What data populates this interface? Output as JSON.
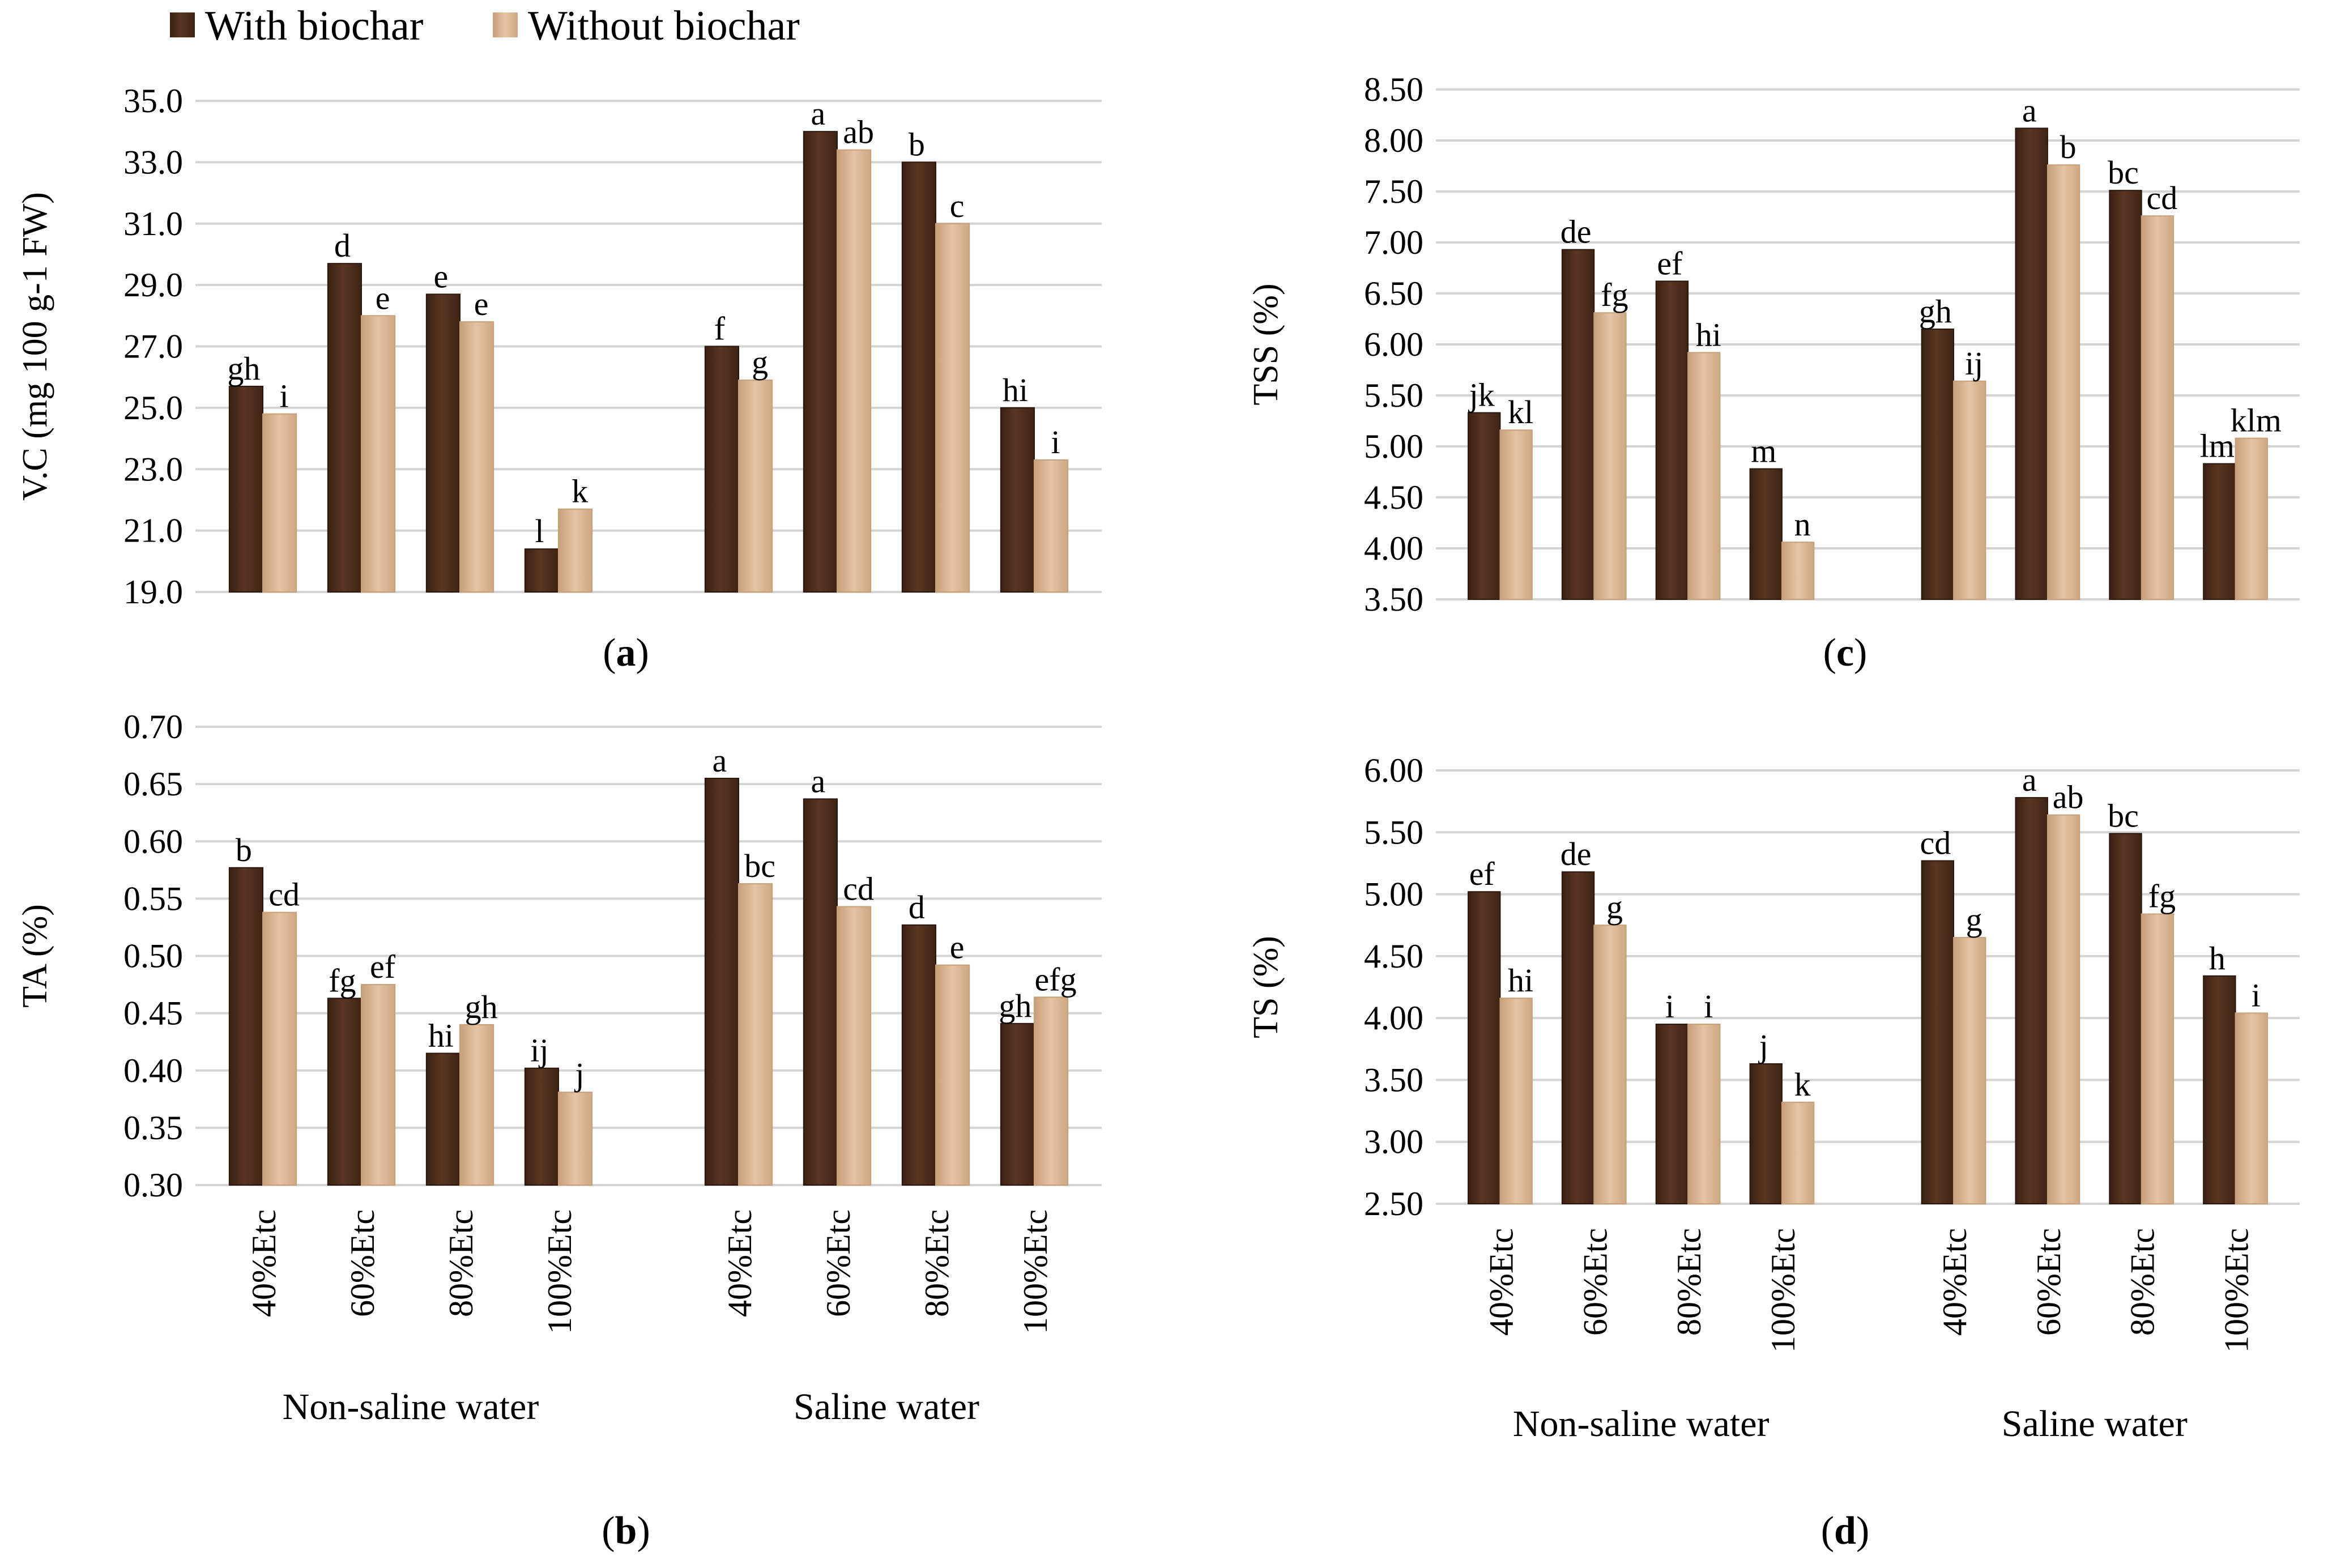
{
  "legend": {
    "with_label": "With biochar",
    "without_label": "Without biochar"
  },
  "colors": {
    "with_biochar": "#4e2d1c",
    "without_biochar": "#dcb38e",
    "grid": "#d4d4d4"
  },
  "group_labels": [
    "Non-saline water",
    "Saline water"
  ],
  "chart_data": [
    {
      "id": "a",
      "panel_label": "a",
      "type": "bar",
      "ylabel": "V.C (mg 100 g-1 FW)",
      "ylim": [
        19.0,
        35.0
      ],
      "yticks": [
        "19.0",
        "21.0",
        "23.0",
        "25.0",
        "27.0",
        "29.0",
        "31.0",
        "33.0",
        "35.0"
      ],
      "show_x_labels": false,
      "categories": [
        "40%Etc",
        "60%Etc",
        "80%Etc",
        "100%Etc",
        "40%Etc",
        "60%Etc",
        "80%Etc",
        "100%Etc"
      ],
      "groups": [
        "Non-saline water",
        "Saline water"
      ],
      "series": [
        {
          "name": "With biochar",
          "values": [
            25.7,
            29.7,
            28.7,
            20.4,
            27.0,
            34.0,
            33.0,
            25.0
          ],
          "labels": [
            "gh",
            "d",
            "e",
            "l",
            "f",
            "a",
            "b",
            "hi"
          ]
        },
        {
          "name": "Without biochar",
          "values": [
            24.8,
            28.0,
            27.8,
            21.7,
            25.9,
            33.4,
            31.0,
            23.3
          ],
          "labels": [
            "i",
            "e",
            "e",
            "k",
            "g",
            "ab",
            "c",
            "i"
          ]
        }
      ]
    },
    {
      "id": "b",
      "panel_label": "b",
      "type": "bar",
      "ylabel": "TA (%)",
      "ylim": [
        0.3,
        0.7
      ],
      "yticks": [
        "0.30",
        "0.35",
        "0.40",
        "0.45",
        "0.50",
        "0.55",
        "0.60",
        "0.65",
        "0.70"
      ],
      "show_x_labels": true,
      "categories": [
        "40%Etc",
        "60%Etc",
        "80%Etc",
        "100%Etc",
        "40%Etc",
        "60%Etc",
        "80%Etc",
        "100%Etc"
      ],
      "groups": [
        "Non-saline water",
        "Saline water"
      ],
      "series": [
        {
          "name": "With biochar",
          "values": [
            0.577,
            0.463,
            0.415,
            0.402,
            0.655,
            0.637,
            0.527,
            0.441
          ],
          "labels": [
            "b",
            "fg",
            "hi",
            "ij",
            "a",
            "a",
            "d",
            "gh"
          ]
        },
        {
          "name": "Without biochar",
          "values": [
            0.538,
            0.475,
            0.44,
            0.381,
            0.563,
            0.543,
            0.492,
            0.464
          ],
          "labels": [
            "cd",
            "ef",
            "gh",
            "j",
            "bc",
            "cd",
            "e",
            "efg"
          ]
        }
      ]
    },
    {
      "id": "c",
      "panel_label": "c",
      "type": "bar",
      "ylabel": "TSS (%)",
      "ylim": [
        3.5,
        8.5
      ],
      "yticks": [
        "3.50",
        "4.00",
        "4.50",
        "5.00",
        "5.50",
        "6.00",
        "6.50",
        "7.00",
        "7.50",
        "8.00",
        "8.50"
      ],
      "show_x_labels": false,
      "categories": [
        "40%Etc",
        "60%Etc",
        "80%Etc",
        "100%Etc",
        "40%Etc",
        "60%Etc",
        "80%Etc",
        "100%Etc"
      ],
      "groups": [
        "Non-saline water",
        "Saline water"
      ],
      "series": [
        {
          "name": "With biochar",
          "values": [
            5.33,
            6.93,
            6.62,
            4.78,
            6.15,
            8.12,
            7.51,
            4.83
          ],
          "labels": [
            "jk",
            "de",
            "ef",
            "m",
            "gh",
            "a",
            "bc",
            "lm"
          ]
        },
        {
          "name": "Without biochar",
          "values": [
            5.16,
            6.31,
            5.92,
            4.06,
            5.64,
            7.76,
            7.26,
            5.08
          ],
          "labels": [
            "kl",
            "fg",
            "hi",
            "n",
            "ij",
            "b",
            "cd",
            "klm"
          ]
        }
      ]
    },
    {
      "id": "d",
      "panel_label": "d",
      "type": "bar",
      "ylabel": "TS (%)",
      "ylim": [
        2.5,
        6.0
      ],
      "yticks": [
        "2.50",
        "3.00",
        "3.50",
        "4.00",
        "4.50",
        "5.00",
        "5.50",
        "6.00"
      ],
      "show_x_labels": true,
      "categories": [
        "40%Etc",
        "60%Etc",
        "80%Etc",
        "100%Etc",
        "40%Etc",
        "60%Etc",
        "80%Etc",
        "100%Etc"
      ],
      "groups": [
        "Non-saline water",
        "Saline water"
      ],
      "series": [
        {
          "name": "With biochar",
          "values": [
            5.02,
            5.18,
            3.95,
            3.63,
            5.27,
            5.78,
            5.49,
            4.34
          ],
          "labels": [
            "ef",
            "de",
            "i",
            "j",
            "cd",
            "a",
            "bc",
            "h"
          ]
        },
        {
          "name": "Without biochar",
          "values": [
            4.16,
            4.75,
            3.95,
            3.32,
            4.65,
            5.64,
            4.84,
            4.04
          ],
          "labels": [
            "hi",
            "g",
            "i",
            "k",
            "g",
            "ab",
            "fg",
            "i"
          ]
        }
      ]
    }
  ]
}
